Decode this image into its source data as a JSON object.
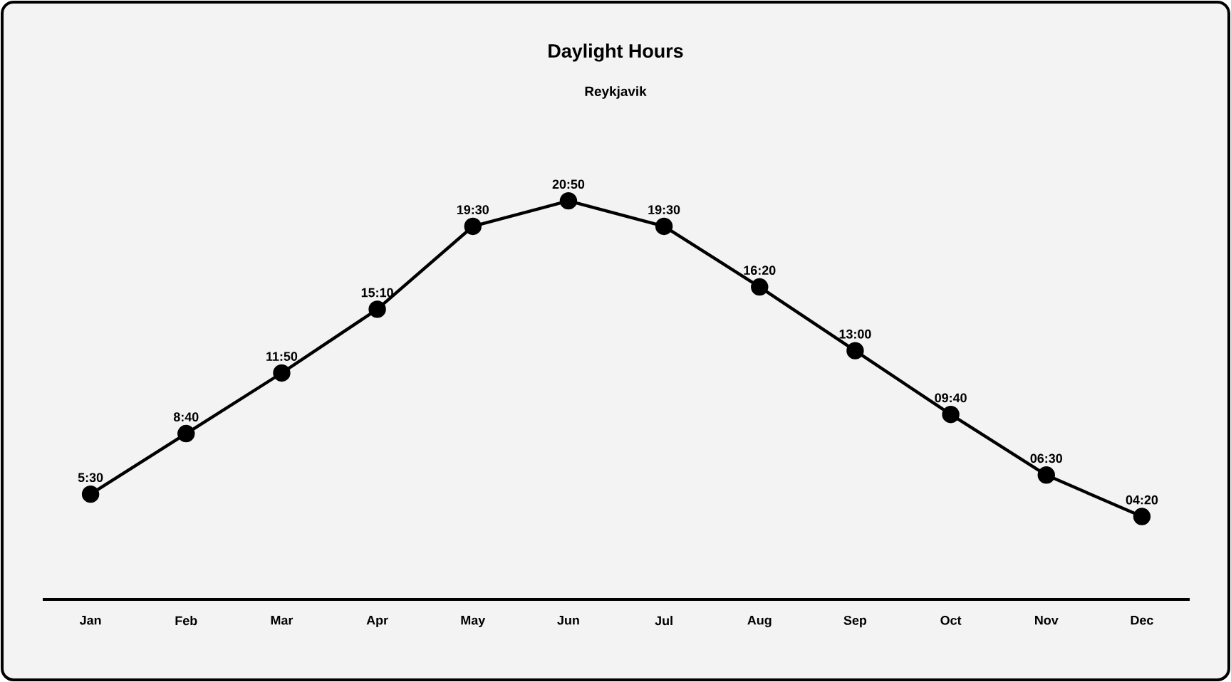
{
  "chart_data": {
    "type": "line",
    "title": "Daylight Hours",
    "subtitle": "Reykjavik",
    "categories": [
      "Jan",
      "Feb",
      "Mar",
      "Apr",
      "May",
      "Jun",
      "Jul",
      "Aug",
      "Sep",
      "Oct",
      "Nov",
      "Dec"
    ],
    "series": [
      {
        "color": "#000000",
        "values": [
          5.5,
          8.667,
          11.833,
          15.167,
          19.5,
          20.833,
          19.5,
          16.333,
          13,
          9.667,
          6.5,
          4.333
        ],
        "value_labels": [
          "5:30",
          "8:40",
          "11:50",
          "15:10",
          "19:30",
          "20:50",
          "19:30",
          "16:20",
          "13:00",
          "09:40",
          "06:30",
          "04:20"
        ]
      }
    ],
    "tick_labels": "x",
    "marker": "circle",
    "line_style": "solid"
  }
}
